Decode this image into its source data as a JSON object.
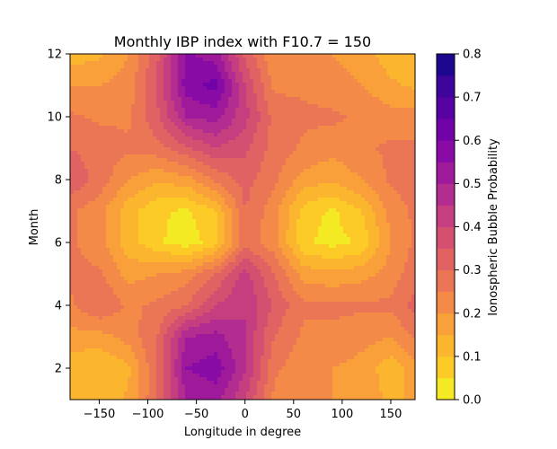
{
  "chart_data": {
    "type": "heatmap",
    "subtype": "filled-contour",
    "title": "Monthly IBP index with F10.7 = 150",
    "xlabel": "Longitude in degree",
    "ylabel": "Month",
    "xlim": [
      -180,
      175
    ],
    "ylim": [
      1,
      12
    ],
    "xticks": [
      -150,
      -100,
      -50,
      0,
      50,
      100,
      150
    ],
    "yticks": [
      2,
      4,
      6,
      8,
      10,
      12
    ],
    "colorbar": {
      "label": "Ionospheric Bubble Probability",
      "colormap": "plasma_r",
      "range": [
        0.0,
        0.8
      ],
      "levels": [
        0.0,
        0.05,
        0.1,
        0.15,
        0.2,
        0.25,
        0.3,
        0.35,
        0.4,
        0.45,
        0.5,
        0.55,
        0.6,
        0.65,
        0.7,
        0.75,
        0.8
      ],
      "tick_labels": [
        "0.0",
        "0.1",
        "0.2",
        "0.3",
        "0.4",
        "0.5",
        "0.6",
        "0.7",
        "0.8"
      ],
      "colors": [
        "#f0f921",
        "#fdc827",
        "#fca636",
        "#f2844b",
        "#e16462",
        "#cc4778",
        "#b12a90",
        "#8f0da4",
        "#6a00a8",
        "#41049d",
        "#0d0887"
      ]
    },
    "grid": false,
    "x": [
      -180,
      -150,
      -120,
      -90,
      -60,
      -30,
      0,
      30,
      60,
      90,
      120,
      150,
      175
    ],
    "y": [
      1,
      2,
      3,
      4,
      5,
      6,
      7,
      8,
      9,
      10,
      11,
      12
    ],
    "z": [
      [
        0.12,
        0.1,
        0.16,
        0.3,
        0.5,
        0.52,
        0.4,
        0.24,
        0.2,
        0.2,
        0.18,
        0.14,
        0.16
      ],
      [
        0.12,
        0.1,
        0.14,
        0.3,
        0.55,
        0.58,
        0.46,
        0.26,
        0.22,
        0.2,
        0.18,
        0.12,
        0.18
      ],
      [
        0.18,
        0.18,
        0.22,
        0.3,
        0.5,
        0.52,
        0.45,
        0.3,
        0.24,
        0.24,
        0.22,
        0.2,
        0.26
      ],
      [
        0.24,
        0.3,
        0.24,
        0.26,
        0.3,
        0.4,
        0.45,
        0.34,
        0.26,
        0.26,
        0.26,
        0.26,
        0.32
      ],
      [
        0.26,
        0.26,
        0.18,
        0.2,
        0.22,
        0.3,
        0.42,
        0.3,
        0.18,
        0.16,
        0.18,
        0.22,
        0.28
      ],
      [
        0.26,
        0.22,
        0.12,
        0.06,
        0.02,
        0.08,
        0.28,
        0.22,
        0.06,
        0.03,
        0.06,
        0.2,
        0.26
      ],
      [
        0.26,
        0.22,
        0.12,
        0.06,
        0.04,
        0.1,
        0.3,
        0.22,
        0.08,
        0.04,
        0.1,
        0.22,
        0.26
      ],
      [
        0.34,
        0.28,
        0.2,
        0.16,
        0.18,
        0.26,
        0.32,
        0.26,
        0.18,
        0.16,
        0.2,
        0.26,
        0.28
      ],
      [
        0.3,
        0.28,
        0.26,
        0.28,
        0.34,
        0.4,
        0.36,
        0.28,
        0.24,
        0.22,
        0.24,
        0.26,
        0.26
      ],
      [
        0.26,
        0.24,
        0.24,
        0.34,
        0.5,
        0.52,
        0.42,
        0.28,
        0.26,
        0.26,
        0.24,
        0.22,
        0.22
      ],
      [
        0.2,
        0.2,
        0.22,
        0.36,
        0.58,
        0.62,
        0.4,
        0.24,
        0.24,
        0.22,
        0.2,
        0.16,
        0.14
      ],
      [
        0.12,
        0.14,
        0.2,
        0.34,
        0.56,
        0.52,
        0.34,
        0.2,
        0.22,
        0.2,
        0.18,
        0.12,
        0.12
      ]
    ]
  }
}
